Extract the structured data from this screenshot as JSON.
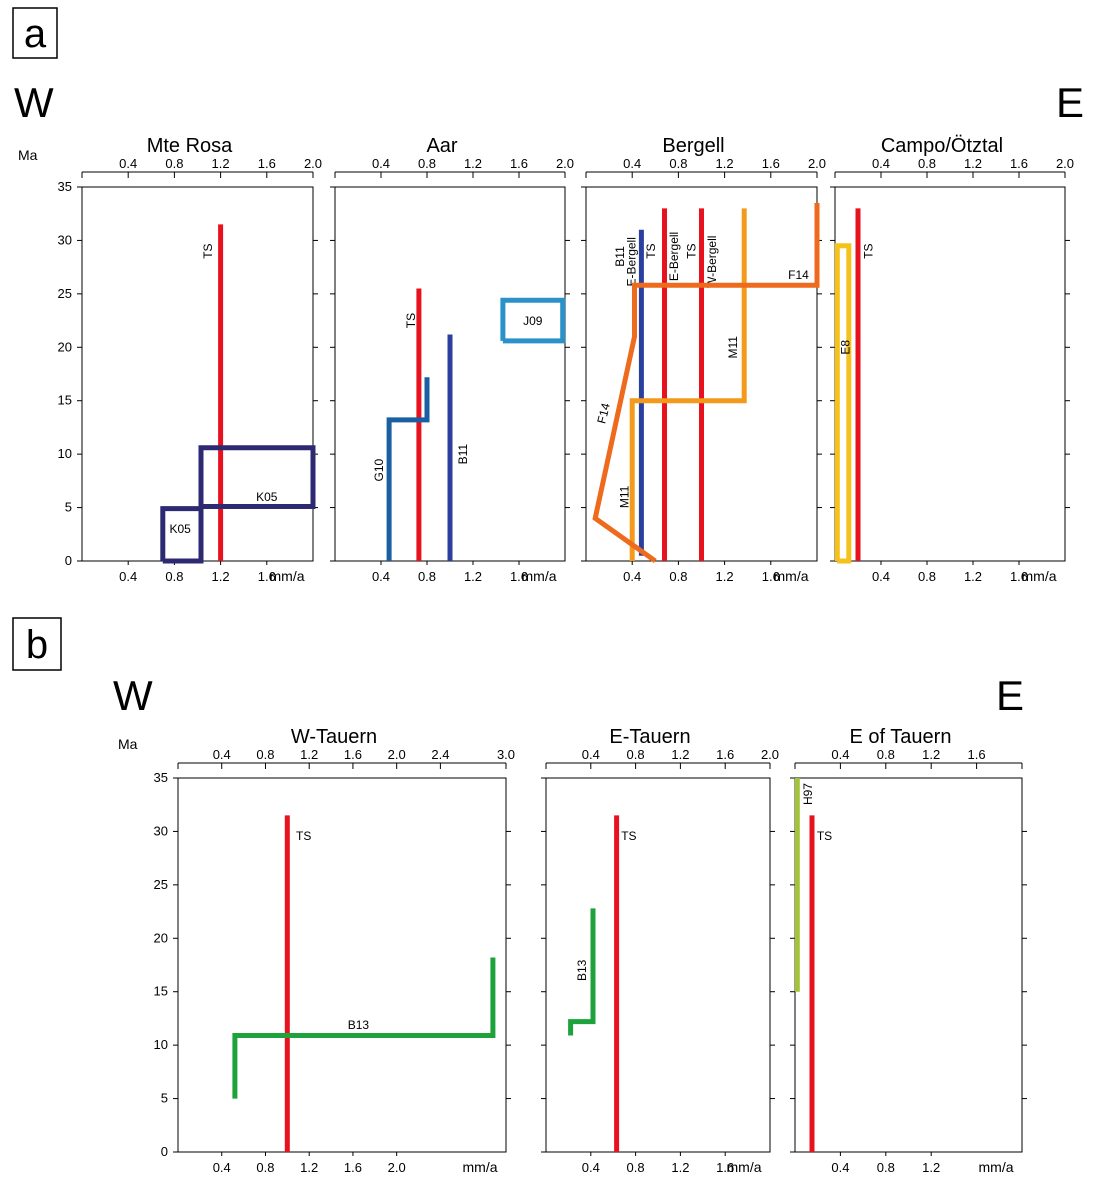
{
  "panel_a": {
    "letter": "a",
    "west": "W",
    "east": "E",
    "y_unit": "Ma"
  },
  "panel_b": {
    "letter": "b",
    "west": "W",
    "east": "E",
    "y_unit": "Ma"
  },
  "axis_unit": "mm/a",
  "chart_data": [
    {
      "type": "line",
      "panel": "a",
      "title": "Mte Rosa",
      "xlim": [
        0,
        2.0
      ],
      "ylim": [
        0,
        35
      ],
      "top_ticks": [
        0.4,
        0.8,
        1.2,
        1.6,
        2.0
      ],
      "bottom_ticks": [
        0.4,
        0.8,
        1.2,
        1.6
      ],
      "y_ticks": [
        0,
        5,
        10,
        15,
        20,
        25,
        30,
        35
      ],
      "series": [
        {
          "name": "TS",
          "color": "#e8121e",
          "label_x": 1.1,
          "label_y": 29,
          "label_rot": -90,
          "points": [
            [
              1.2,
              0
            ],
            [
              1.2,
              31.5
            ]
          ]
        },
        {
          "name": "K05",
          "color": "#2e2a72",
          "label_x": 1.6,
          "label_y": 5.9,
          "points": [
            [
              1.03,
              5.1
            ],
            [
              2.0,
              5.1
            ],
            [
              2.0,
              10.6
            ],
            [
              1.03,
              10.6
            ],
            [
              1.03,
              5.1
            ]
          ]
        },
        {
          "name": "K05",
          "color": "#2e2a72",
          "label_x": 0.85,
          "label_y": 2.9,
          "points": [
            [
              0.7,
              0
            ],
            [
              1.03,
              0
            ],
            [
              1.03,
              4.9
            ],
            [
              0.7,
              4.9
            ],
            [
              0.7,
              0
            ]
          ]
        }
      ]
    },
    {
      "type": "line",
      "panel": "a",
      "title": "Aar",
      "xlim": [
        0,
        2.0
      ],
      "ylim": [
        0,
        35
      ],
      "top_ticks": [
        0.4,
        0.8,
        1.2,
        1.6,
        2.0
      ],
      "bottom_ticks": [
        0.4,
        0.8,
        1.2,
        1.6
      ],
      "y_ticks": [
        0,
        5,
        10,
        15,
        20,
        25,
        30,
        35
      ],
      "series": [
        {
          "name": "TS",
          "color": "#e8121e",
          "label_x": 0.67,
          "label_y": 22.5,
          "label_rot": -90,
          "points": [
            [
              0.73,
              0
            ],
            [
              0.73,
              25.5
            ]
          ]
        },
        {
          "name": "B11",
          "color": "#2b3f9e",
          "label_x": 1.12,
          "label_y": 10,
          "label_rot": -90,
          "points": [
            [
              1.0,
              0
            ],
            [
              1.0,
              21.2
            ]
          ]
        },
        {
          "name": "G10",
          "color": "#1b5fa3",
          "label_x": 0.39,
          "label_y": 8.5,
          "label_rot": -90,
          "points": [
            [
              0.47,
              0
            ],
            [
              0.47,
              13.2
            ],
            [
              0.8,
              13.2
            ],
            [
              0.8,
              17.2
            ]
          ]
        },
        {
          "name": "J09",
          "color": "#2a92c9",
          "label_x": 1.72,
          "label_y": 22.4,
          "points": [
            [
              1.46,
              20.6
            ],
            [
              1.98,
              20.6
            ],
            [
              1.98,
              24.4
            ],
            [
              1.46,
              24.4
            ],
            [
              1.46,
              20.6
            ]
          ]
        }
      ]
    },
    {
      "type": "line",
      "panel": "a",
      "title": "Bergell",
      "xlim": [
        0,
        2.0
      ],
      "ylim": [
        0,
        35
      ],
      "top_ticks": [
        0.4,
        0.8,
        1.2,
        1.6,
        2.0
      ],
      "bottom_ticks": [
        0.4,
        0.8,
        1.2,
        1.6
      ],
      "y_ticks": [
        0,
        5,
        10,
        15,
        20,
        25,
        30,
        35
      ],
      "series": [
        {
          "name": "B11",
          "color": "#2b3f9e",
          "label_x": 0.3,
          "label_y": 28.5,
          "label_rot": -90,
          "points": [
            [
              0.48,
              0.5
            ],
            [
              0.48,
              31
            ]
          ]
        },
        {
          "name": "E-Bergell",
          "color": "#2b3f9e",
          "label_x": 0.4,
          "label_y": 28,
          "label_rot": -90,
          "points": []
        },
        {
          "name": "TS",
          "color": "#e8121e",
          "label_x": 0.57,
          "label_y": 29,
          "label_rot": -90,
          "points": [
            [
              0.68,
              0
            ],
            [
              0.68,
              33
            ]
          ]
        },
        {
          "name": "E-Bergell",
          "color": "#e8121e",
          "label_x": 0.77,
          "label_y": 28.5,
          "label_rot": -90,
          "points": []
        },
        {
          "name": "TS",
          "color": "#e8121e",
          "label_x": 0.92,
          "label_y": 29,
          "label_rot": -90,
          "points": [
            [
              1.0,
              0
            ],
            [
              1.0,
              33
            ]
          ]
        },
        {
          "name": "W-Bergell",
          "color": "#e8121e",
          "label_x": 1.1,
          "label_y": 28,
          "label_rot": -90,
          "points": []
        },
        {
          "name": "M11",
          "color": "#f39a1d",
          "label_x": 1.28,
          "label_y": 20,
          "label_rot": -90,
          "points": [
            [
              0.4,
              0
            ],
            [
              0.4,
              15
            ],
            [
              1.37,
              15
            ],
            [
              1.37,
              33
            ]
          ]
        },
        {
          "name": "M11",
          "color": "#f39a1d",
          "label_x": 0.34,
          "label_y": 6,
          "label_rot": -90,
          "points": []
        },
        {
          "name": "F14",
          "color": "#ee6a1c",
          "label_x": 1.84,
          "label_y": 26.7,
          "points": [
            [
              0.6,
              0
            ],
            [
              0.08,
              4
            ],
            [
              0.42,
              21
            ],
            [
              0.42,
              25.8
            ],
            [
              2.0,
              25.8
            ],
            [
              2.0,
              33.5
            ]
          ]
        },
        {
          "name": "F14",
          "color": "#ee6a1c",
          "label_x": 0.16,
          "label_y": 13.8,
          "label_rot": -76,
          "points": []
        }
      ]
    },
    {
      "type": "line",
      "panel": "a",
      "title": "Campo/Ötztal",
      "xlim": [
        0,
        2.0
      ],
      "ylim": [
        0,
        35
      ],
      "top_ticks": [
        0.4,
        0.8,
        1.2,
        1.6,
        2.0
      ],
      "bottom_ticks": [
        0.4,
        0.8,
        1.2,
        1.6
      ],
      "y_ticks": [
        0,
        5,
        10,
        15,
        20,
        25,
        30,
        35
      ],
      "series": [
        {
          "name": "TS",
          "color": "#e8121e",
          "label_x": 0.3,
          "label_y": 29,
          "label_rot": -90,
          "points": [
            [
              0.2,
              0
            ],
            [
              0.2,
              33
            ]
          ]
        },
        {
          "name": "E8",
          "color": "#f5c21b",
          "label_x": 0.1,
          "label_y": 20,
          "label_rot": -90,
          "points": [
            [
              0.02,
              0
            ],
            [
              0.12,
              0
            ],
            [
              0.12,
              29.5
            ],
            [
              0.02,
              29.5
            ],
            [
              0.02,
              0
            ]
          ]
        }
      ]
    },
    {
      "type": "line",
      "panel": "b",
      "title": "W-Tauern",
      "xlim": [
        0,
        3.0
      ],
      "ylim": [
        0,
        35
      ],
      "top_ticks": [
        0.4,
        0.8,
        1.2,
        1.6,
        2.0,
        2.4,
        3.0
      ],
      "bottom_ticks": [
        0.4,
        0.8,
        1.2,
        1.6,
        2.0
      ],
      "y_ticks": [
        0,
        5,
        10,
        15,
        20,
        25,
        30,
        35
      ],
      "series": [
        {
          "name": "TS",
          "color": "#e8121e",
          "label_x": 1.15,
          "label_y": 29.5,
          "points": [
            [
              1.0,
              0
            ],
            [
              1.0,
              31.5
            ]
          ]
        },
        {
          "name": "B13",
          "color": "#1ea33c",
          "label_x": 1.65,
          "label_y": 11.8,
          "points": [
            [
              0.52,
              5
            ],
            [
              0.52,
              10.9
            ],
            [
              2.88,
              10.9
            ],
            [
              2.88,
              18.2
            ]
          ]
        }
      ]
    },
    {
      "type": "line",
      "panel": "b",
      "title": "E-Tauern",
      "xlim": [
        0,
        2.0
      ],
      "ylim": [
        0,
        35
      ],
      "top_ticks": [
        0.4,
        0.8,
        1.2,
        1.6,
        2.0
      ],
      "bottom_ticks": [
        0.4,
        0.8,
        1.2,
        1.6
      ],
      "y_ticks": [
        0,
        5,
        10,
        15,
        20,
        25,
        30,
        35
      ],
      "series": [
        {
          "name": "TS",
          "color": "#e8121e",
          "label_x": 0.74,
          "label_y": 29.5,
          "points": [
            [
              0.63,
              0
            ],
            [
              0.63,
              31.5
            ]
          ]
        },
        {
          "name": "B13",
          "color": "#1ea33c",
          "label_x": 0.33,
          "label_y": 17,
          "label_rot": -90,
          "points": [
            [
              0.22,
              10.9
            ],
            [
              0.22,
              12.2
            ],
            [
              0.42,
              12.2
            ],
            [
              0.42,
              22.8
            ]
          ]
        }
      ]
    },
    {
      "type": "line",
      "panel": "b",
      "title": "E of Tauern",
      "xlim": [
        0,
        2.0
      ],
      "ylim": [
        0,
        35
      ],
      "top_ticks": [
        0.4,
        0.8,
        1.2,
        1.6
      ],
      "bottom_ticks": [
        0.4,
        0.8,
        1.2
      ],
      "y_ticks": [
        0,
        5,
        10,
        15,
        20,
        25,
        30,
        35
      ],
      "series": [
        {
          "name": "TS",
          "color": "#e8121e",
          "label_x": 0.26,
          "label_y": 29.5,
          "points": [
            [
              0.15,
              0
            ],
            [
              0.15,
              31.5
            ]
          ]
        },
        {
          "name": "H97",
          "color": "#a4c23a",
          "label_x": 0.12,
          "label_y": 33.5,
          "label_rot": -90,
          "points": [
            [
              0.02,
              15
            ],
            [
              0.02,
              35
            ]
          ]
        }
      ]
    }
  ]
}
